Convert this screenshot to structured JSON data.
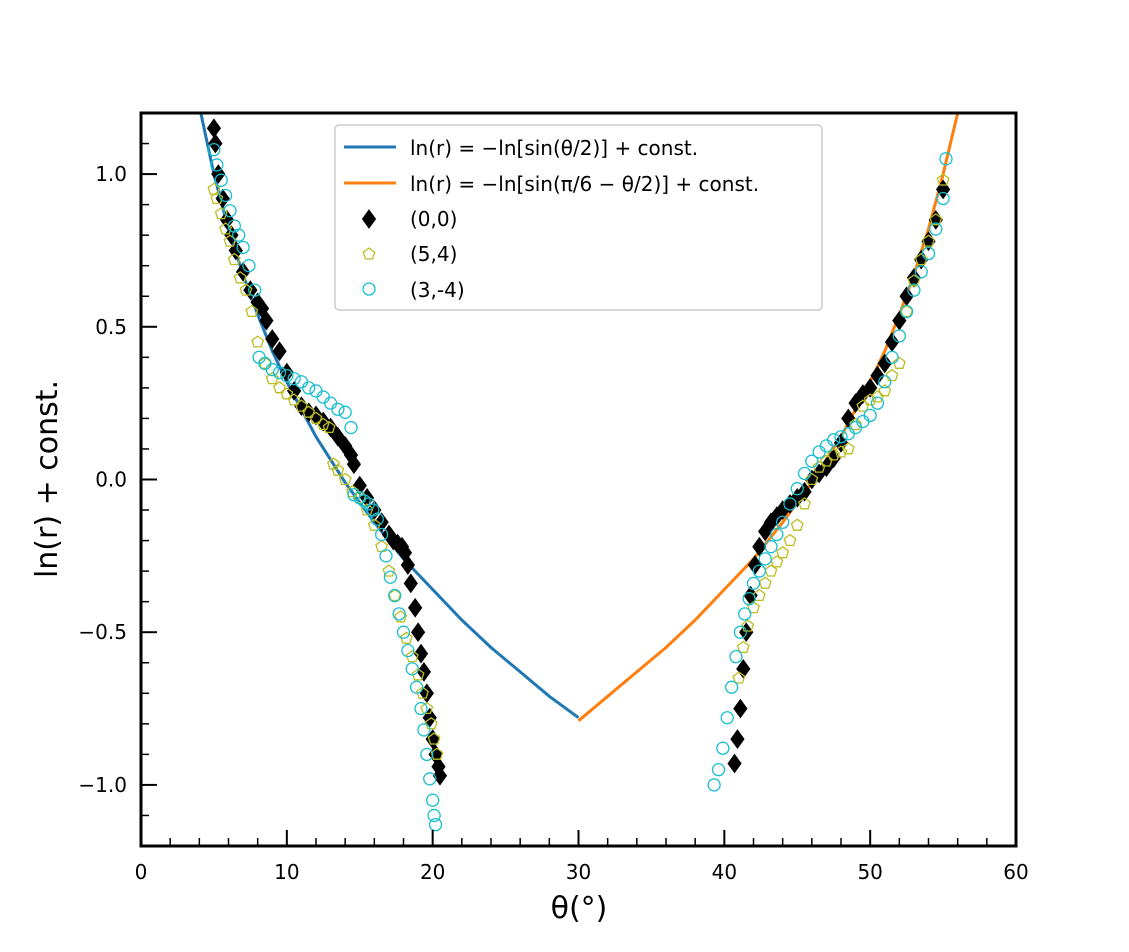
{
  "chart_data": {
    "type": "scatter",
    "xlabel": "θ(°)",
    "ylabel": "ln(r) + const.",
    "xlim": [
      0,
      60
    ],
    "ylim": [
      -1.2,
      1.2
    ],
    "xticks": [
      0,
      10,
      20,
      30,
      40,
      50,
      60
    ],
    "xtick_labels": [
      "0",
      "10",
      "20",
      "30",
      "40",
      "50",
      "60"
    ],
    "yticks": [
      -1.0,
      -0.5,
      0.0,
      0.5,
      1.0
    ],
    "ytick_labels": [
      "−1.0",
      "−0.5",
      "0.0",
      "0.5",
      "1.0"
    ],
    "grid": false,
    "legend_position": "top-center",
    "curves": [
      {
        "name": "ln(r) = −ln[sin(θ/2)] + const.",
        "color": "#1f77b4",
        "x": [
          4.1,
          5,
          6,
          7,
          8,
          9,
          10,
          12,
          14,
          16,
          18,
          20,
          22,
          24,
          26,
          28,
          30
        ],
        "y": [
          1.2,
          1.0,
          0.82,
          0.67,
          0.54,
          0.42,
          0.32,
          0.14,
          -0.01,
          -0.14,
          -0.26,
          -0.36,
          -0.46,
          -0.55,
          -0.63,
          -0.71,
          -0.78
        ]
      },
      {
        "name": "ln(r) = −ln[sin(π/6 − θ/2)] + const.",
        "color": "#ff7f0e",
        "x": [
          30,
          32,
          34,
          36,
          38,
          40,
          42,
          44,
          46,
          48,
          50,
          51,
          52,
          53,
          54,
          55,
          56
        ],
        "y": [
          -0.79,
          -0.71,
          -0.63,
          -0.55,
          -0.46,
          -0.36,
          -0.26,
          -0.14,
          -0.01,
          0.14,
          0.32,
          0.42,
          0.54,
          0.67,
          0.82,
          1.0,
          1.2
        ]
      }
    ],
    "series": [
      {
        "name": "(0,0)",
        "marker": "diamond",
        "color": "#000000",
        "filled": true,
        "x": [
          5.0,
          5.1,
          5.3,
          5.6,
          5.9,
          6.2,
          6.5,
          7.0,
          7.5,
          8.0,
          8.3,
          8.6,
          9.0,
          9.5,
          10.0,
          10.5,
          11.0,
          11.5,
          12.0,
          12.5,
          13.0,
          13.5,
          14.0,
          14.4,
          14.6,
          15.0,
          15.5,
          16.0,
          16.5,
          17.0,
          17.3,
          17.6,
          17.9,
          18.1,
          18.3,
          18.5,
          18.8,
          19.0,
          19.2,
          19.4,
          19.6,
          19.8,
          20.0,
          20.2,
          20.4,
          20.5,
          40.7,
          40.9,
          41.1,
          41.3,
          41.5,
          41.8,
          42.1,
          42.4,
          42.8,
          43.2,
          43.6,
          44.0,
          44.5,
          45.0,
          45.5,
          46.0,
          46.5,
          47.0,
          47.5,
          48.0,
          48.5,
          49.0,
          49.5,
          50.0,
          50.5,
          51.0,
          51.5,
          52.0,
          52.5,
          53.0,
          53.5,
          54.0,
          54.5,
          55.0
        ],
        "y": [
          1.15,
          1.1,
          1.0,
          0.92,
          0.85,
          0.8,
          0.75,
          0.68,
          0.62,
          0.58,
          0.56,
          0.52,
          0.46,
          0.42,
          0.35,
          0.29,
          0.24,
          0.22,
          0.21,
          0.19,
          0.17,
          0.14,
          0.11,
          0.08,
          0.05,
          -0.02,
          -0.06,
          -0.1,
          -0.14,
          -0.18,
          -0.2,
          -0.21,
          -0.22,
          -0.24,
          -0.28,
          -0.34,
          -0.42,
          -0.5,
          -0.57,
          -0.63,
          -0.7,
          -0.78,
          -0.85,
          -0.9,
          -0.94,
          -0.97,
          -0.93,
          -0.85,
          -0.75,
          -0.62,
          -0.5,
          -0.38,
          -0.28,
          -0.22,
          -0.17,
          -0.14,
          -0.12,
          -0.1,
          -0.08,
          -0.06,
          -0.04,
          0.0,
          0.02,
          0.04,
          0.07,
          0.12,
          0.2,
          0.25,
          0.28,
          0.3,
          0.34,
          0.38,
          0.45,
          0.52,
          0.6,
          0.66,
          0.72,
          0.78,
          0.85,
          0.95
        ]
      },
      {
        "name": "(5,4)",
        "marker": "pentagon",
        "color": "#bcbd22",
        "filled": false,
        "x": [
          5.0,
          5.2,
          5.5,
          5.8,
          6.1,
          6.4,
          6.8,
          7.2,
          7.6,
          8.0,
          8.5,
          9.0,
          9.5,
          10.0,
          10.5,
          11.0,
          11.5,
          12.0,
          12.5,
          12.9,
          13.2,
          13.5,
          14.0,
          14.5,
          15.0,
          15.5,
          16.0,
          16.5,
          17.0,
          17.4,
          17.8,
          18.2,
          18.6,
          19.0,
          19.3,
          19.6,
          19.9,
          20.1,
          20.3,
          41.0,
          41.3,
          41.6,
          42.0,
          42.4,
          42.8,
          43.2,
          43.6,
          44.0,
          44.5,
          45.0,
          45.5,
          46.0,
          46.5,
          47.0,
          47.5,
          48.0,
          48.5,
          49.0,
          49.5,
          50.0,
          50.5,
          51.0,
          51.5,
          52.0,
          52.5,
          53.0,
          53.5,
          54.0,
          54.5,
          55.0
        ],
        "y": [
          0.95,
          0.92,
          0.87,
          0.82,
          0.78,
          0.72,
          0.66,
          0.62,
          0.55,
          0.45,
          0.38,
          0.33,
          0.3,
          0.28,
          0.26,
          0.24,
          0.22,
          0.2,
          0.18,
          0.17,
          0.05,
          0.03,
          0.0,
          -0.04,
          -0.06,
          -0.1,
          -0.15,
          -0.22,
          -0.3,
          -0.38,
          -0.45,
          -0.52,
          -0.58,
          -0.64,
          -0.7,
          -0.75,
          -0.8,
          -0.85,
          -0.9,
          -0.65,
          -0.55,
          -0.48,
          -0.42,
          -0.38,
          -0.34,
          -0.3,
          -0.27,
          -0.24,
          -0.2,
          -0.15,
          -0.08,
          0.0,
          0.04,
          0.06,
          0.08,
          0.09,
          0.1,
          0.18,
          0.24,
          0.26,
          0.27,
          0.29,
          0.34,
          0.38,
          0.55,
          0.65,
          0.72,
          0.78,
          0.85,
          0.98
        ]
      },
      {
        "name": "(3,-4)",
        "marker": "circle",
        "color": "#17becf",
        "filled": false,
        "x": [
          5.0,
          5.2,
          5.5,
          5.8,
          6.1,
          6.4,
          6.7,
          7.0,
          7.4,
          7.8,
          8.1,
          8.5,
          9.0,
          9.5,
          10.0,
          10.5,
          11.0,
          11.5,
          12.0,
          12.5,
          13.0,
          13.5,
          14.0,
          14.4,
          14.6,
          15.0,
          15.3,
          15.6,
          15.9,
          16.2,
          16.5,
          16.8,
          17.1,
          17.4,
          17.7,
          18.0,
          18.3,
          18.6,
          18.9,
          19.2,
          19.4,
          19.6,
          19.8,
          20.0,
          20.1,
          20.2,
          39.3,
          39.6,
          39.9,
          40.2,
          40.5,
          40.8,
          41.1,
          41.4,
          41.7,
          42.0,
          42.4,
          42.8,
          43.2,
          43.6,
          44.0,
          44.5,
          45.0,
          45.5,
          46.0,
          46.5,
          47.0,
          47.5,
          48.0,
          48.5,
          49.0,
          49.5,
          50.0,
          50.5,
          51.0,
          51.5,
          52.0,
          52.5,
          53.0,
          53.5,
          54.0,
          54.5,
          55.0,
          55.2
        ],
        "y": [
          1.08,
          1.03,
          0.98,
          0.93,
          0.88,
          0.83,
          0.8,
          0.76,
          0.7,
          0.62,
          0.4,
          0.38,
          0.36,
          0.35,
          0.34,
          0.33,
          0.32,
          0.3,
          0.29,
          0.27,
          0.25,
          0.23,
          0.22,
          0.17,
          -0.05,
          -0.06,
          -0.07,
          -0.08,
          -0.1,
          -0.13,
          -0.18,
          -0.25,
          -0.32,
          -0.38,
          -0.44,
          -0.5,
          -0.56,
          -0.62,
          -0.68,
          -0.75,
          -0.82,
          -0.9,
          -0.98,
          -1.05,
          -1.1,
          -1.13,
          -1.0,
          -0.95,
          -0.88,
          -0.78,
          -0.68,
          -0.58,
          -0.5,
          -0.44,
          -0.39,
          -0.34,
          -0.3,
          -0.26,
          -0.22,
          -0.18,
          -0.14,
          -0.08,
          -0.03,
          0.02,
          0.06,
          0.09,
          0.11,
          0.13,
          0.14,
          0.15,
          0.17,
          0.19,
          0.21,
          0.25,
          0.32,
          0.4,
          0.47,
          0.55,
          0.62,
          0.68,
          0.74,
          0.82,
          0.92,
          1.05
        ]
      }
    ]
  }
}
